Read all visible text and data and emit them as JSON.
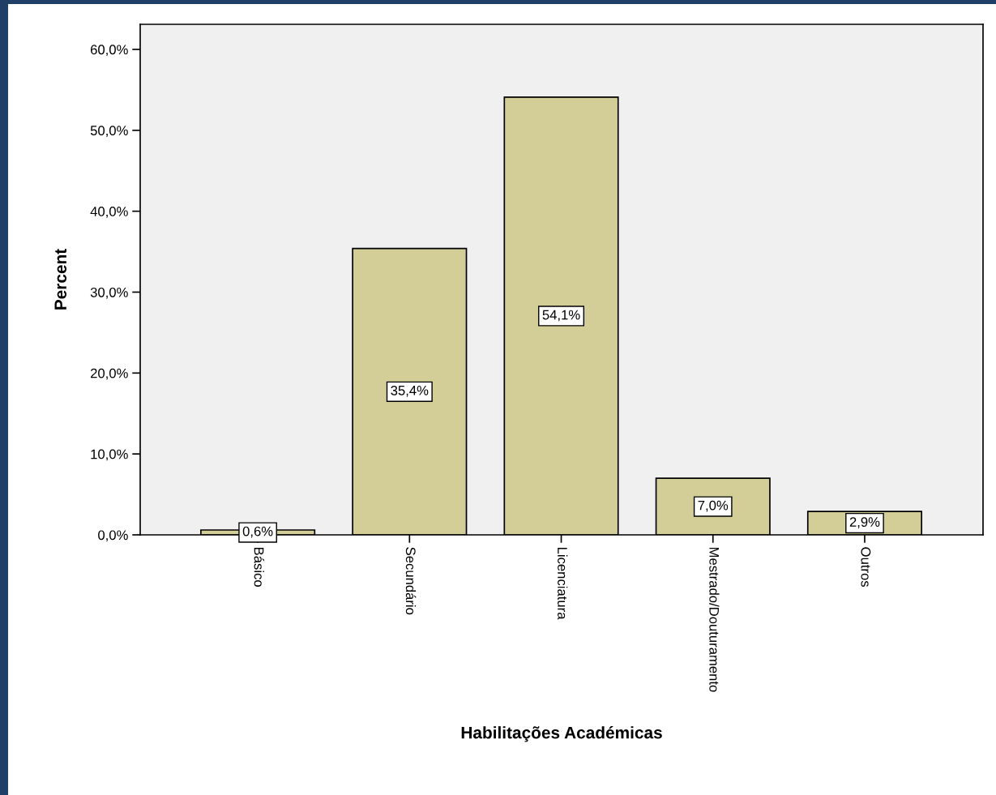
{
  "chart_data": {
    "type": "bar",
    "xlabel": "Habilitações Académicas",
    "ylabel": "Percent",
    "categories": [
      "Básico",
      "Secundário",
      "Licenciatura",
      "Mestrado/Douturamento",
      "Outros"
    ],
    "values": [
      0.6,
      35.4,
      54.1,
      7.0,
      2.9
    ],
    "value_labels": [
      "0,6%",
      "35,4%",
      "54,1%",
      "7,0%",
      "2,9%"
    ],
    "color": "#d3ce97",
    "ylim": [
      0,
      63.1
    ],
    "yticks": [
      {
        "value": 0,
        "label": "0,0%"
      },
      {
        "value": 10,
        "label": "10,0%"
      },
      {
        "value": 20,
        "label": "20,0%"
      },
      {
        "value": 30,
        "label": "30,0%"
      },
      {
        "value": 40,
        "label": "40,0%"
      },
      {
        "value": 50,
        "label": "50,0%"
      },
      {
        "value": 60,
        "label": "60,0%"
      }
    ],
    "grid": false
  }
}
